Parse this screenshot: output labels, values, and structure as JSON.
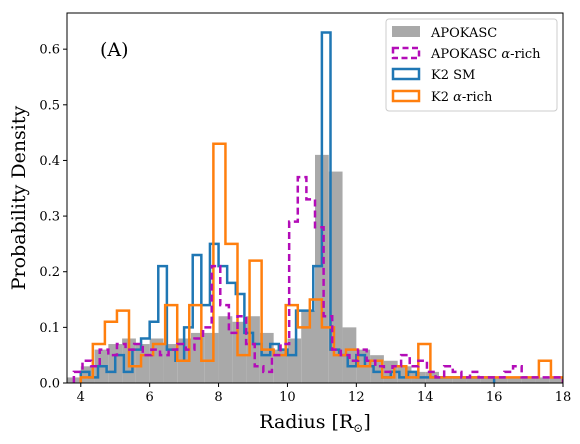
{
  "chart_data": {
    "type": "histogram",
    "panel_label": "(A)",
    "xlabel": "Radius [R",
    "xlabel_sub": "⊙",
    "xlabel_end": "]",
    "ylabel": "Probability Density",
    "xlim": [
      3.6,
      18
    ],
    "ylim": [
      0,
      0.665
    ],
    "xticks": [
      4,
      6,
      8,
      10,
      12,
      14,
      16,
      18
    ],
    "yticks": [
      0.0,
      0.1,
      0.2,
      0.3,
      0.4,
      0.5,
      0.6
    ],
    "ytick_labels": [
      "0.0",
      "0.1",
      "0.2",
      "0.3",
      "0.4",
      "0.5",
      "0.6"
    ],
    "legend_position": "top-right",
    "series": [
      {
        "name": "APOKASC",
        "style": "filled",
        "color": "#a9a9a9",
        "bins": [
          [
            3.6,
            4.0,
            0.01
          ],
          [
            4.0,
            4.4,
            0.03
          ],
          [
            4.4,
            4.8,
            0.06
          ],
          [
            4.8,
            5.2,
            0.07
          ],
          [
            5.2,
            5.6,
            0.08
          ],
          [
            5.6,
            6.0,
            0.07
          ],
          [
            6.0,
            6.4,
            0.08
          ],
          [
            6.4,
            6.8,
            0.07
          ],
          [
            6.8,
            7.2,
            0.08
          ],
          [
            7.2,
            7.6,
            0.09
          ],
          [
            7.6,
            8.0,
            0.09
          ],
          [
            8.0,
            8.4,
            0.12
          ],
          [
            8.4,
            8.8,
            0.11
          ],
          [
            8.8,
            9.2,
            0.12
          ],
          [
            9.2,
            9.6,
            0.09
          ],
          [
            9.6,
            10.0,
            0.06
          ],
          [
            10.0,
            10.4,
            0.08
          ],
          [
            10.4,
            10.8,
            0.13
          ],
          [
            10.8,
            11.2,
            0.41
          ],
          [
            11.2,
            11.6,
            0.38
          ],
          [
            11.6,
            12.0,
            0.1
          ],
          [
            12.0,
            12.4,
            0.06
          ],
          [
            12.4,
            12.8,
            0.05
          ],
          [
            12.8,
            13.2,
            0.04
          ],
          [
            13.2,
            13.6,
            0.03
          ],
          [
            13.6,
            14.0,
            0.02
          ],
          [
            14.0,
            14.4,
            0.02
          ],
          [
            14.4,
            14.8,
            0.01
          ],
          [
            14.8,
            15.2,
            0.01
          ],
          [
            15.2,
            15.6,
            0.01
          ],
          [
            15.6,
            16.0,
            0.01
          ],
          [
            16.0,
            16.4,
            0.01
          ],
          [
            16.4,
            16.8,
            0.01
          ],
          [
            16.8,
            17.2,
            0.01
          ],
          [
            17.2,
            17.6,
            0.01
          ],
          [
            17.6,
            18.0,
            0.01
          ]
        ]
      },
      {
        "name": "APOKASC α-rich",
        "name_main": "APOKASC ",
        "name_alpha": "α",
        "name_tail": "-rich",
        "style": "dashed",
        "color": "#b30cb8",
        "edges": [
          3.8,
          4.05,
          4.3,
          4.55,
          4.8,
          5.05,
          5.3,
          5.55,
          5.8,
          6.05,
          6.3,
          6.55,
          6.8,
          7.05,
          7.3,
          7.55,
          7.8,
          8.05,
          8.3,
          8.55,
          8.8,
          9.05,
          9.3,
          9.55,
          9.8,
          10.05,
          10.3,
          10.55,
          10.8,
          11.05,
          11.3,
          11.55,
          11.8,
          12.05,
          12.3,
          12.55,
          12.8,
          13.05,
          13.3,
          13.55,
          13.8,
          14.05,
          14.3,
          14.55,
          14.8,
          15.05,
          15.3,
          15.55,
          15.8,
          16.05,
          16.3,
          16.55,
          16.8,
          17.05,
          17.3,
          17.55,
          17.8,
          18.0
        ],
        "values": [
          0.02,
          0.04,
          0.03,
          0.06,
          0.05,
          0.07,
          0.06,
          0.07,
          0.05,
          0.06,
          0.05,
          0.06,
          0.07,
          0.06,
          0.08,
          0.1,
          0.21,
          0.14,
          0.09,
          0.12,
          0.07,
          0.03,
          0.02,
          0.05,
          0.07,
          0.29,
          0.37,
          0.33,
          0.28,
          0.12,
          0.06,
          0.05,
          0.04,
          0.06,
          0.04,
          0.03,
          0.02,
          0.03,
          0.05,
          0.03,
          0.04,
          0.02,
          0.01,
          0.03,
          0.02,
          0.01,
          0.02,
          0.01,
          0.01,
          0.01,
          0.02,
          0.03,
          0.01,
          0.01,
          0.01,
          0.01,
          0.01
        ]
      },
      {
        "name": "K2 SM",
        "style": "step",
        "color": "#1f77b4",
        "edges": [
          4.0,
          4.25,
          4.5,
          4.75,
          5.0,
          5.25,
          5.5,
          5.75,
          6.0,
          6.25,
          6.5,
          6.75,
          7.0,
          7.25,
          7.5,
          7.75,
          8.0,
          8.25,
          8.5,
          8.75,
          9.0,
          9.25,
          9.5,
          9.75,
          10.0,
          10.25,
          10.5,
          10.75,
          11.0,
          11.25,
          11.5,
          11.75,
          12.0,
          12.25,
          12.5,
          12.75,
          13.0,
          13.25,
          13.5,
          13.75,
          14.0,
          14.25,
          14.5,
          14.75,
          15.0,
          15.25,
          15.5,
          15.75,
          16.0
        ],
        "values": [
          0.02,
          0.01,
          0.03,
          0.02,
          0.05,
          0.02,
          0.06,
          0.08,
          0.11,
          0.21,
          0.06,
          0.04,
          0.1,
          0.23,
          0.14,
          0.25,
          0.21,
          0.18,
          0.16,
          0.09,
          0.07,
          0.05,
          0.07,
          0.06,
          0.05,
          0.13,
          0.13,
          0.21,
          0.63,
          0.06,
          0.05,
          0.03,
          0.05,
          0.03,
          0.02,
          0.01,
          0.02,
          0.01,
          0.02,
          0.01,
          0.01,
          0.01,
          0.01,
          0.01,
          0.01,
          0.01,
          0.01,
          0.01
        ]
      },
      {
        "name": "K2 α-rich",
        "name_main": "K2 ",
        "name_alpha": "α",
        "name_tail": "-rich",
        "style": "step",
        "color": "#ff7f0e",
        "edges": [
          4.0,
          4.35,
          4.7,
          5.05,
          5.4,
          5.75,
          6.1,
          6.45,
          6.8,
          7.15,
          7.5,
          7.85,
          8.2,
          8.55,
          8.9,
          9.25,
          9.6,
          9.95,
          10.3,
          10.65,
          11.0,
          11.35,
          11.7,
          12.05,
          12.4,
          12.75,
          13.1,
          13.45,
          13.8,
          14.15,
          14.5,
          14.85,
          15.2,
          15.55,
          15.9,
          16.25,
          16.6,
          16.95,
          17.3,
          17.65,
          18.0
        ],
        "values": [
          0.01,
          0.07,
          0.11,
          0.13,
          0.03,
          0.05,
          0.07,
          0.14,
          0.04,
          0.14,
          0.04,
          0.43,
          0.25,
          0.05,
          0.22,
          0.06,
          0.05,
          0.14,
          0.1,
          0.15,
          0.1,
          0.05,
          0.06,
          0.03,
          0.04,
          0.01,
          0.03,
          0.01,
          0.07,
          0.01,
          0.01,
          0.01,
          0.01,
          0.01,
          0.01,
          0.01,
          0.01,
          0.01,
          0.04,
          0.01
        ]
      }
    ]
  }
}
